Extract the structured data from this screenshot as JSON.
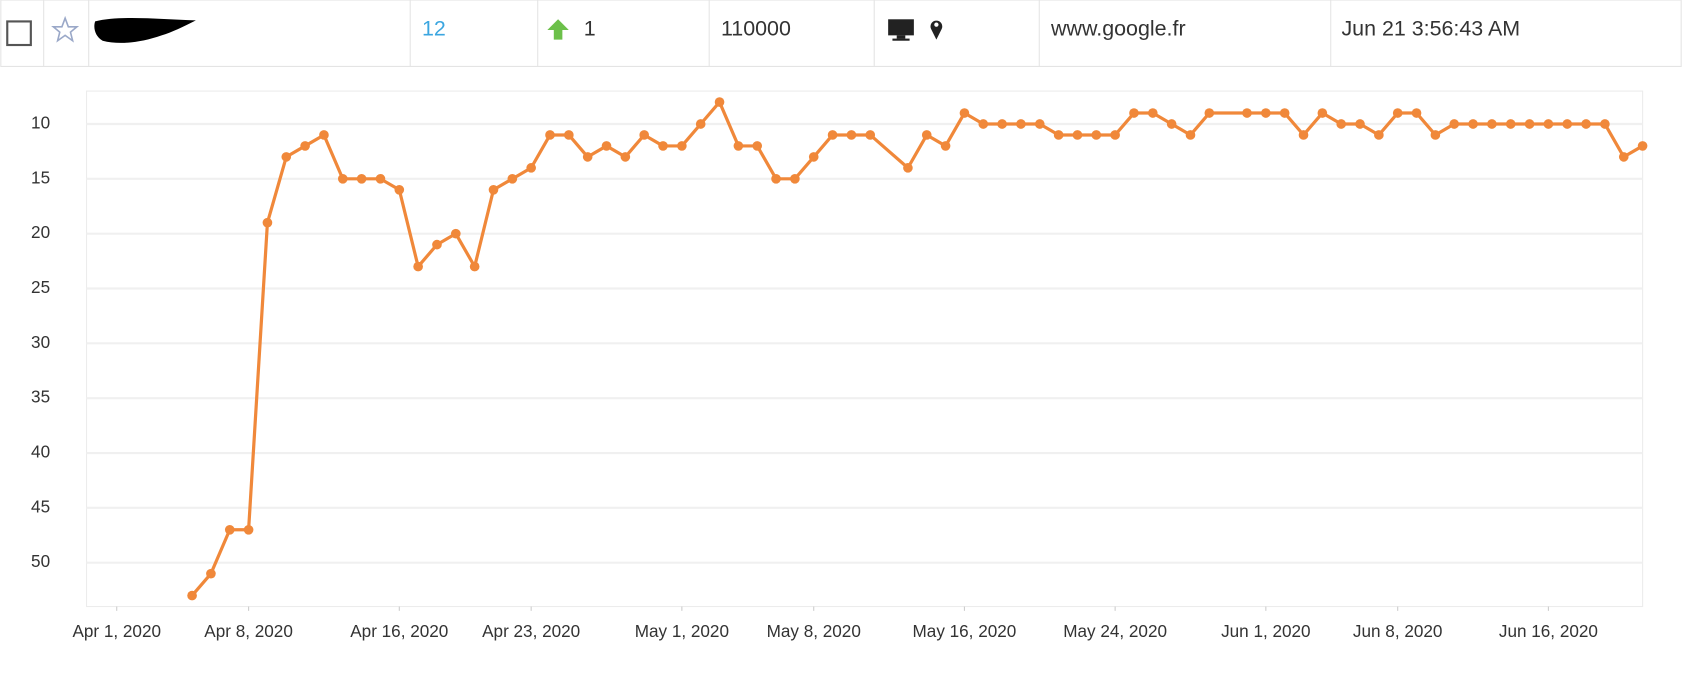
{
  "row": {
    "rank": "12",
    "change": "1",
    "volume": "110000",
    "domain": "www.google.fr",
    "date": "Jun 21 3:56:43 AM"
  },
  "chart_data": {
    "type": "line",
    "color": "#f0883a",
    "x": [
      "2020-04-05",
      "2020-04-06",
      "2020-04-07",
      "2020-04-08",
      "2020-04-09",
      "2020-04-10",
      "2020-04-11",
      "2020-04-12",
      "2020-04-13",
      "2020-04-14",
      "2020-04-15",
      "2020-04-16",
      "2020-04-17",
      "2020-04-18",
      "2020-04-19",
      "2020-04-20",
      "2020-04-21",
      "2020-04-22",
      "2020-04-23",
      "2020-04-24",
      "2020-04-25",
      "2020-04-26",
      "2020-04-27",
      "2020-04-28",
      "2020-04-29",
      "2020-04-30",
      "2020-05-01",
      "2020-05-02",
      "2020-05-03",
      "2020-05-04",
      "2020-05-05",
      "2020-05-06",
      "2020-05-07",
      "2020-05-08",
      "2020-05-09",
      "2020-05-10",
      "2020-05-11",
      "2020-05-13",
      "2020-05-14",
      "2020-05-15",
      "2020-05-16",
      "2020-05-17",
      "2020-05-18",
      "2020-05-19",
      "2020-05-20",
      "2020-05-21",
      "2020-05-22",
      "2020-05-23",
      "2020-05-24",
      "2020-05-25",
      "2020-05-26",
      "2020-05-27",
      "2020-05-28",
      "2020-05-29",
      "2020-05-31",
      "2020-06-01",
      "2020-06-02",
      "2020-06-03",
      "2020-06-04",
      "2020-06-05",
      "2020-06-06",
      "2020-06-07",
      "2020-06-08",
      "2020-06-09",
      "2020-06-10",
      "2020-06-11",
      "2020-06-12",
      "2020-06-13",
      "2020-06-14",
      "2020-06-15",
      "2020-06-16",
      "2020-06-17",
      "2020-06-18",
      "2020-06-19",
      "2020-06-20",
      "2020-06-21"
    ],
    "values": [
      53,
      51,
      47,
      47,
      19,
      13,
      12,
      11,
      15,
      15,
      15,
      16,
      23,
      21,
      20,
      23,
      16,
      15,
      14,
      11,
      11,
      13,
      12,
      13,
      11,
      12,
      12,
      10,
      8,
      12,
      12,
      15,
      15,
      13,
      11,
      11,
      11,
      14,
      11,
      12,
      9,
      10,
      10,
      10,
      10,
      11,
      11,
      11,
      11,
      9,
      9,
      10,
      11,
      9,
      9,
      9,
      9,
      11,
      9,
      10,
      10,
      11,
      9,
      9,
      11,
      10,
      10,
      10,
      10,
      10,
      10,
      10,
      10,
      10,
      13,
      12
    ],
    "ylim": [
      54,
      7
    ],
    "yticks": [
      10,
      15,
      20,
      25,
      30,
      35,
      40,
      45,
      50
    ],
    "xlim": [
      "2020-03-30",
      "2020-06-21"
    ],
    "xticks": [
      {
        "value": "2020-04-01",
        "label": "Apr 1, 2020"
      },
      {
        "value": "2020-04-08",
        "label": "Apr 8, 2020"
      },
      {
        "value": "2020-04-16",
        "label": "Apr 16, 2020"
      },
      {
        "value": "2020-04-23",
        "label": "Apr 23, 2020"
      },
      {
        "value": "2020-05-01",
        "label": "May 1, 2020"
      },
      {
        "value": "2020-05-08",
        "label": "May 8, 2020"
      },
      {
        "value": "2020-05-16",
        "label": "May 16, 2020"
      },
      {
        "value": "2020-05-24",
        "label": "May 24, 2020"
      },
      {
        "value": "2020-06-01",
        "label": "Jun 1, 2020"
      },
      {
        "value": "2020-06-08",
        "label": "Jun 8, 2020"
      },
      {
        "value": "2020-06-16",
        "label": "Jun 16, 2020"
      }
    ],
    "grid": true
  }
}
